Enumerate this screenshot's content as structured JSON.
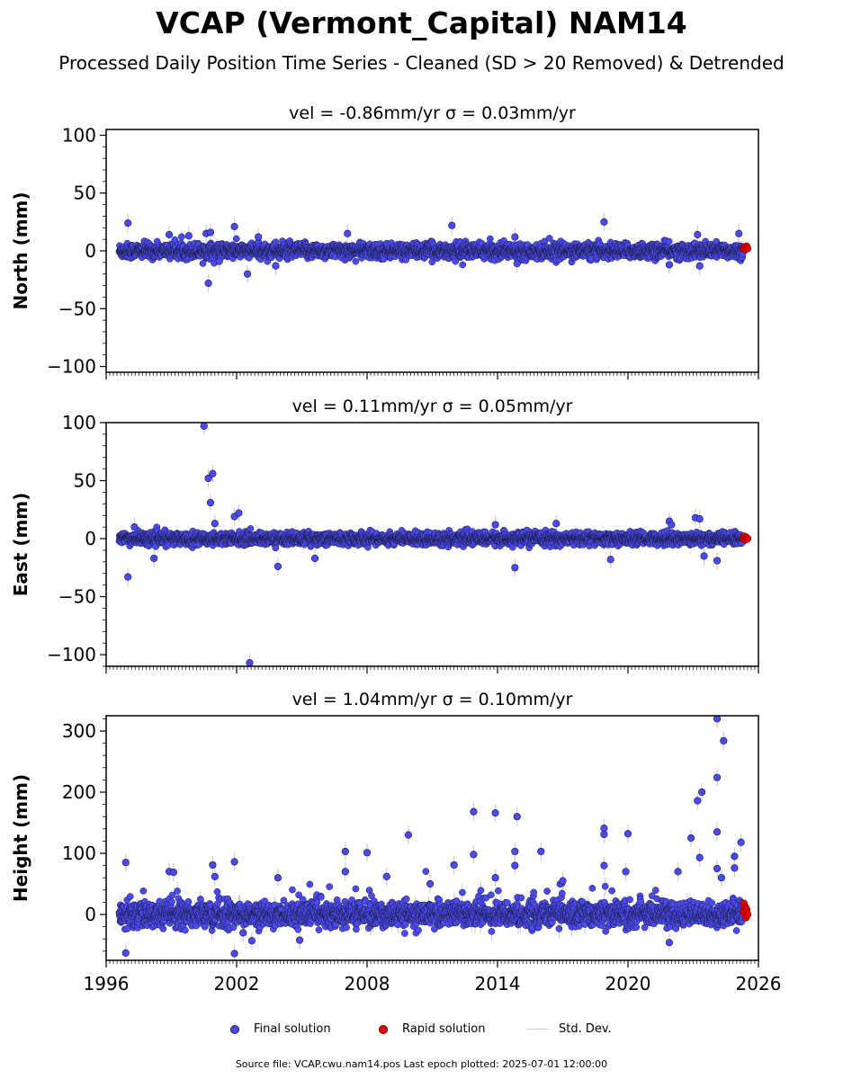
{
  "title": "VCAP (Vermont_Capital) NAM14",
  "subtitle": "Processed Daily Position Time Series - Cleaned (SD > 20 Removed) & Detrended",
  "source_text": "Source file: VCAP.cwu.nam14.pos  Last epoch plotted: 2025-07-01 12:00:00",
  "legend": {
    "final": "Final solution",
    "rapid": "Rapid solution",
    "std": "Std. Dev."
  },
  "colors": {
    "final": "#4a4af0",
    "rapid": "#e00000",
    "edge": "#1a1a3a",
    "stddev": "#cccccc"
  },
  "chart_data": [
    {
      "type": "scatter",
      "name": "north",
      "title": "vel = -0.86mm/yr   σ = 0.03mm/yr",
      "ylabel": "North (mm)",
      "xlim": [
        1996,
        2026
      ],
      "ylim": [
        -105,
        105
      ],
      "yticks": [
        -100,
        -50,
        0,
        50,
        100
      ],
      "xticks": [
        1996,
        2002,
        2008,
        2014,
        2020,
        2026
      ],
      "xtick_labels": [],
      "noise_sd": 3.2,
      "outliers": [
        [
          1997.0,
          24
        ],
        [
          1998.9,
          14
        ],
        [
          2000.7,
          -28
        ],
        [
          2000.6,
          15
        ],
        [
          2000.8,
          16
        ],
        [
          2001.9,
          21
        ],
        [
          2001.2,
          -9
        ],
        [
          2002.5,
          -20
        ],
        [
          2003.8,
          -13
        ],
        [
          2007.1,
          15
        ],
        [
          2011.9,
          22
        ],
        [
          2014.9,
          -11
        ],
        [
          2014.8,
          12
        ],
        [
          2018.9,
          25
        ],
        [
          2021.9,
          -12
        ],
        [
          2023.3,
          -13
        ],
        [
          2023.2,
          14
        ],
        [
          2025.1,
          15
        ],
        [
          2003.0,
          12
        ],
        [
          1999.8,
          13
        ]
      ]
    },
    {
      "type": "scatter",
      "name": "east",
      "title": "vel = 0.11mm/yr   σ = 0.05mm/yr",
      "ylabel": "East (mm)",
      "xlim": [
        1996,
        2026
      ],
      "ylim": [
        -110,
        100
      ],
      "yticks": [
        -100,
        -50,
        0,
        50,
        100
      ],
      "xticks": [
        1996,
        2002,
        2008,
        2014,
        2020,
        2026
      ],
      "xtick_labels": [],
      "noise_sd": 2.6,
      "outliers": [
        [
          1997.0,
          -33
        ],
        [
          2000.5,
          97
        ],
        [
          2000.7,
          52
        ],
        [
          2000.9,
          56
        ],
        [
          2000.8,
          31
        ],
        [
          2001.0,
          13
        ],
        [
          2001.9,
          19
        ],
        [
          2002.1,
          22
        ],
        [
          2002.6,
          -107
        ],
        [
          2003.9,
          -24
        ],
        [
          2005.6,
          -17
        ],
        [
          2014.8,
          -25
        ],
        [
          2019.2,
          -18
        ],
        [
          2021.9,
          15
        ],
        [
          2022.0,
          12
        ],
        [
          2023.1,
          18
        ],
        [
          2023.3,
          17
        ],
        [
          2023.5,
          -15
        ],
        [
          2024.1,
          -19
        ],
        [
          2016.7,
          13
        ],
        [
          2013.9,
          12
        ],
        [
          1997.3,
          10
        ],
        [
          1998.2,
          -17
        ]
      ]
    },
    {
      "type": "scatter",
      "name": "height",
      "title": "vel = 1.04mm/yr   σ = 0.10mm/yr",
      "ylabel": "Height (mm)",
      "xlim": [
        1996,
        2026
      ],
      "ylim": [
        -75,
        325
      ],
      "yticks": [
        0,
        100,
        200,
        300
      ],
      "xticks": [
        1996,
        2002,
        2008,
        2014,
        2020,
        2026
      ],
      "xtick_labels": [
        "1996",
        "2002",
        "2008",
        "2014",
        "2020",
        "2026"
      ],
      "noise_sd": 10,
      "outliers": [
        [
          1996.9,
          85
        ],
        [
          1996.9,
          -63
        ],
        [
          1998.9,
          70
        ],
        [
          1999.1,
          69
        ],
        [
          2000.9,
          81
        ],
        [
          2001.0,
          62
        ],
        [
          2001.9,
          86
        ],
        [
          2001.9,
          -64
        ],
        [
          2002.3,
          -30
        ],
        [
          2002.7,
          -43
        ],
        [
          2003.9,
          60
        ],
        [
          2004.9,
          -42
        ],
        [
          2007.0,
          103
        ],
        [
          2007.0,
          70
        ],
        [
          2008.0,
          101
        ],
        [
          2008.9,
          62
        ],
        [
          2009.9,
          130
        ],
        [
          2012.0,
          81
        ],
        [
          2012.9,
          98
        ],
        [
          2012.9,
          168
        ],
        [
          2013.9,
          166
        ],
        [
          2013.9,
          60
        ],
        [
          2014.9,
          160
        ],
        [
          2014.8,
          103
        ],
        [
          2014.8,
          80
        ],
        [
          2016.0,
          103
        ],
        [
          2018.9,
          141
        ],
        [
          2018.9,
          131
        ],
        [
          2018.9,
          80
        ],
        [
          2020.0,
          132
        ],
        [
          2019.9,
          70
        ],
        [
          2021.9,
          -46
        ],
        [
          2022.3,
          70
        ],
        [
          2022.9,
          125
        ],
        [
          2023.2,
          186
        ],
        [
          2023.4,
          200
        ],
        [
          2023.3,
          93
        ],
        [
          2024.1,
          320
        ],
        [
          2024.1,
          224
        ],
        [
          2024.1,
          135
        ],
        [
          2024.4,
          284
        ],
        [
          2024.1,
          75
        ],
        [
          2024.3,
          60
        ],
        [
          2024.9,
          95
        ],
        [
          2024.9,
          76
        ],
        [
          2025.2,
          118
        ],
        [
          2017.0,
          55
        ],
        [
          2010.9,
          50
        ]
      ]
    }
  ],
  "rapid": {
    "north": [
      [
        2025.3,
        2
      ],
      [
        2025.35,
        3
      ],
      [
        2025.4,
        1
      ],
      [
        2025.45,
        4
      ],
      [
        2025.5,
        2
      ]
    ],
    "east": [
      [
        2025.3,
        0
      ],
      [
        2025.35,
        2
      ],
      [
        2025.4,
        -1
      ],
      [
        2025.45,
        1
      ],
      [
        2025.5,
        0
      ]
    ],
    "height": [
      [
        2025.3,
        5
      ],
      [
        2025.33,
        18
      ],
      [
        2025.36,
        2
      ],
      [
        2025.4,
        12
      ],
      [
        2025.43,
        -5
      ],
      [
        2025.46,
        8
      ],
      [
        2025.5,
        0
      ]
    ]
  }
}
